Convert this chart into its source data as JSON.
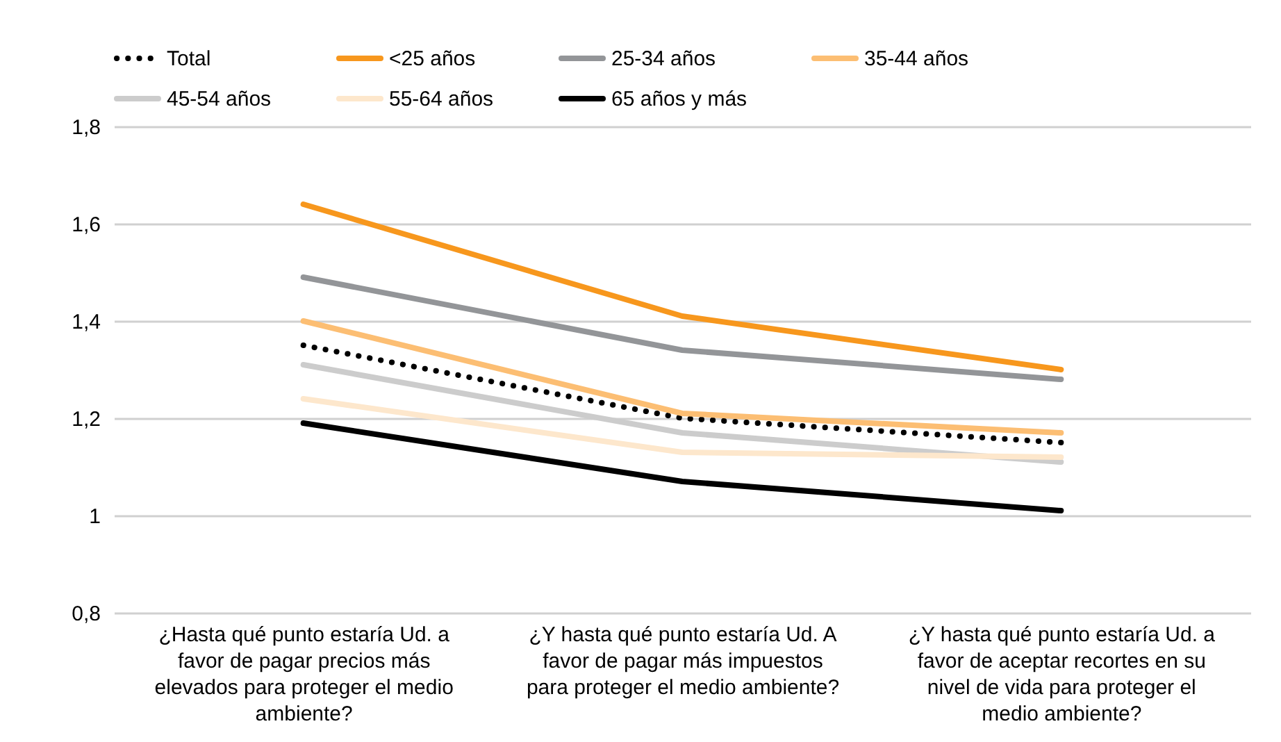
{
  "chart_data": {
    "type": "line",
    "categories": [
      "¿Hasta qué punto estaría Ud. a favor de pagar precios más elevados para proteger el medio ambiente?",
      "¿Y hasta qué punto estaría Ud. A favor de pagar más impuestos para proteger el medio ambiente?",
      "¿Y hasta qué punto estaría Ud. a favor de aceptar recortes en su nivel de vida para proteger el medio ambiente?"
    ],
    "series": [
      {
        "name": "Total",
        "color": "#000000",
        "line_style": "dotted",
        "values": [
          1.35,
          1.2,
          1.15
        ]
      },
      {
        "name": "<25 años",
        "color": "#f7971d",
        "values": [
          1.64,
          1.41,
          1.3
        ]
      },
      {
        "name": "25-34 años",
        "color": "#939598",
        "values": [
          1.49,
          1.34,
          1.28
        ]
      },
      {
        "name": "35-44 años",
        "color": "#fcbe73",
        "values": [
          1.4,
          1.21,
          1.17
        ]
      },
      {
        "name": "45-54 años",
        "color": "#cccccc",
        "values": [
          1.31,
          1.17,
          1.11
        ]
      },
      {
        "name": "55-64 años",
        "color": "#fde7cc",
        "values": [
          1.24,
          1.13,
          1.12
        ]
      },
      {
        "name": "65 años y más",
        "color": "#000000",
        "values": [
          1.19,
          1.07,
          1.01
        ]
      }
    ],
    "ylim": [
      0.8,
      1.8
    ],
    "yticks": [
      {
        "value": 0.8,
        "label": "0,8"
      },
      {
        "value": 1,
        "label": "1"
      },
      {
        "value": 1.2,
        "label": "1,2"
      },
      {
        "value": 1.4,
        "label": "1,4"
      },
      {
        "value": 1.6,
        "label": "1,6"
      },
      {
        "value": 1.8,
        "label": "1,8"
      }
    ],
    "grid": "y",
    "legend": "top",
    "marker": "none"
  }
}
